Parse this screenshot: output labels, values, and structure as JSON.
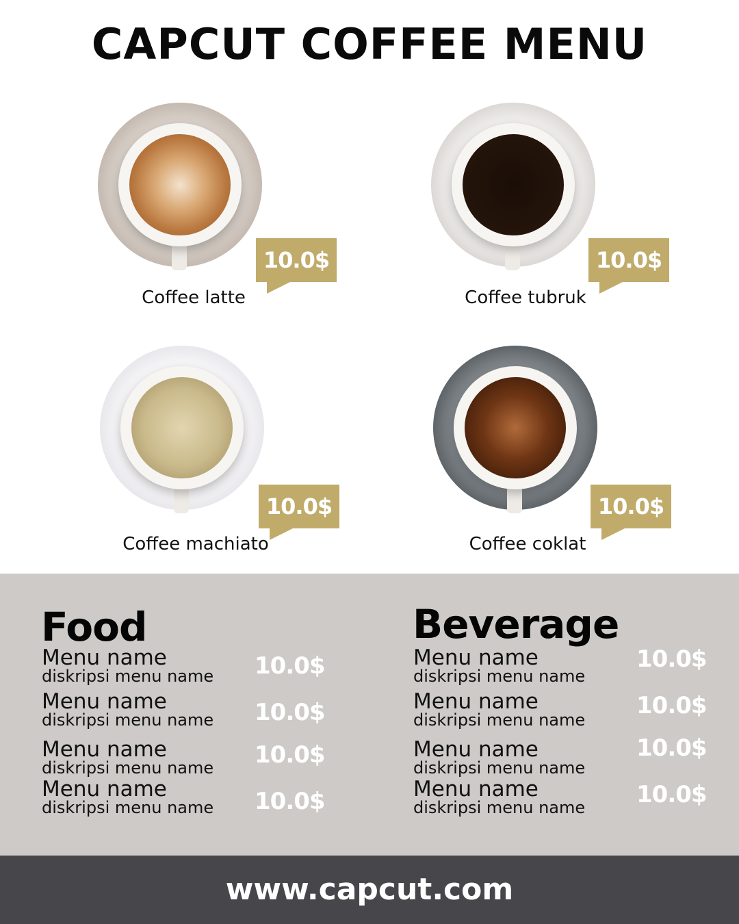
{
  "title": "CAPCUT COFFEE MENU",
  "colors": {
    "accent": "#c0ab6a",
    "panel": "#cdcac7",
    "footer": "#47464b"
  },
  "coffees": [
    {
      "name": "Coffee latte",
      "price": "10.0$"
    },
    {
      "name": "Coffee tubruk",
      "price": "10.0$"
    },
    {
      "name": "Coffee machiato",
      "price": "10.0$"
    },
    {
      "name": "Coffee coklat",
      "price": "10.0$"
    }
  ],
  "food": {
    "heading": "Food",
    "items": [
      {
        "name": "Menu name",
        "desc": "diskripsi menu name",
        "price": "10.0$"
      },
      {
        "name": "Menu name",
        "desc": "diskripsi menu name",
        "price": "10.0$"
      },
      {
        "name": "Menu name",
        "desc": "diskripsi menu name",
        "price": "10.0$"
      },
      {
        "name": "Menu name",
        "desc": "diskripsi menu name",
        "price": "10.0$"
      }
    ]
  },
  "beverage": {
    "heading": "Beverage",
    "items": [
      {
        "name": "Menu name",
        "desc": "diskripsi menu name",
        "price": "10.0$"
      },
      {
        "name": "Menu name",
        "desc": "diskripsi menu name",
        "price": "10.0$"
      },
      {
        "name": "Menu name",
        "desc": "diskripsi menu name",
        "price": "10.0$"
      },
      {
        "name": "Menu name",
        "desc": "diskripsi menu name",
        "price": "10.0$"
      }
    ]
  },
  "footer": "www.capcut.com"
}
